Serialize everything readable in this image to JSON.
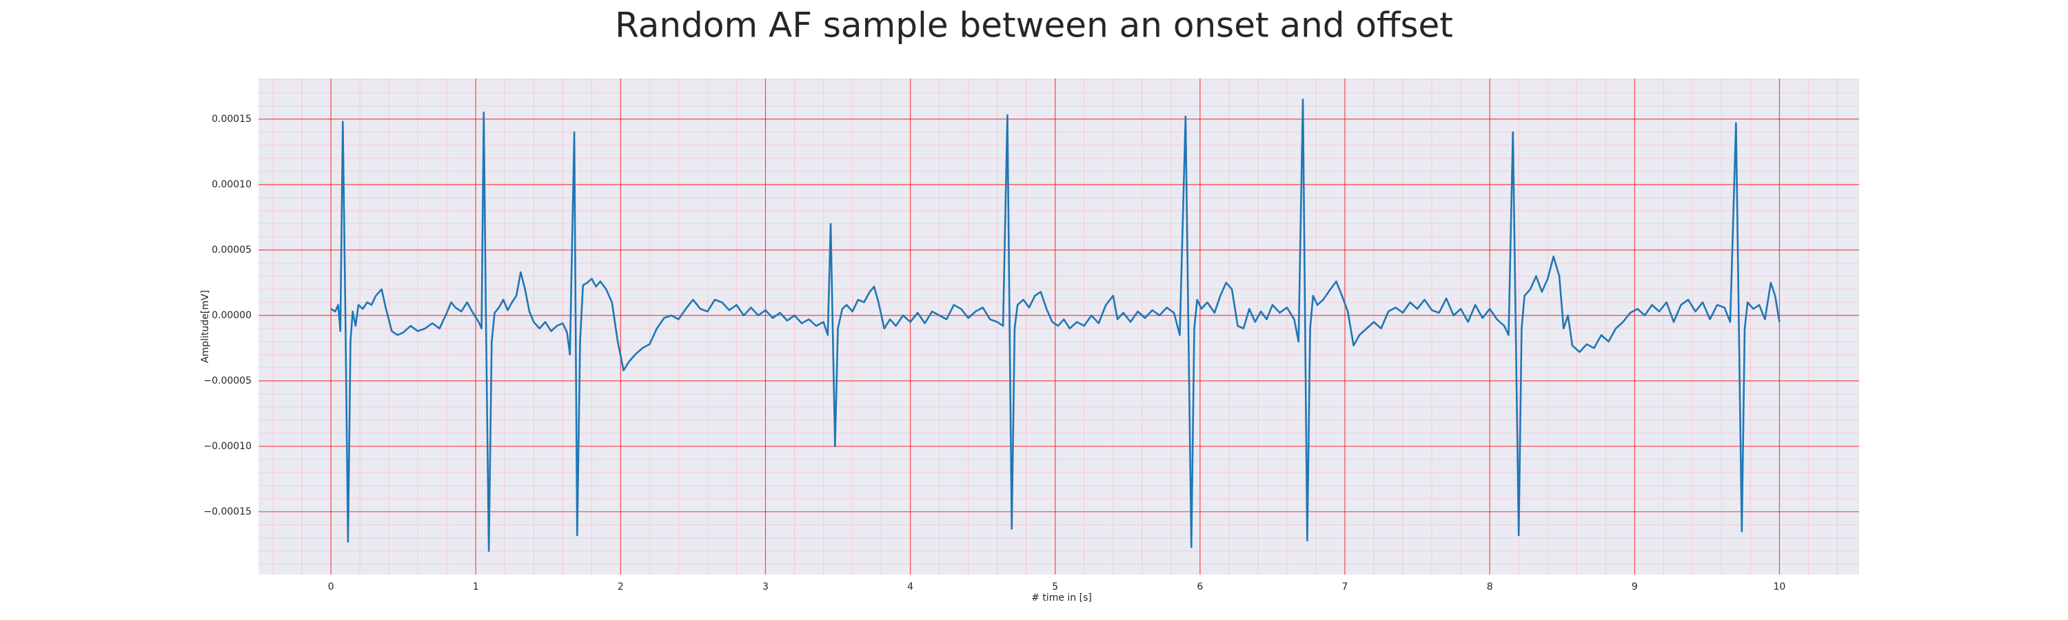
{
  "chart_data": {
    "type": "line",
    "title": "Random AF sample between an onset and offset",
    "xlabel": "# time in [s]",
    "ylabel": "Amplitude[mV]",
    "color": "#1f77b4",
    "background": "#eaeaf2",
    "grid": true,
    "grid_color": "#ff0000",
    "minor_grid": true,
    "minor_grid_color": "#ffb6c1",
    "xlim": [
      -0.5,
      10.55
    ],
    "ylim": [
      -0.000198,
      0.000181
    ],
    "xticks": [
      0,
      1,
      2,
      3,
      4,
      5,
      6,
      7,
      8,
      9,
      10
    ],
    "yticks": [
      {
        "value": -0.00015,
        "label": "−0.00015"
      },
      {
        "value": -0.0001,
        "label": "−0.00010"
      },
      {
        "value": -5e-05,
        "label": "−0.00005"
      },
      {
        "value": 0,
        "label": "0.00000"
      },
      {
        "value": 5e-05,
        "label": "0.00005"
      },
      {
        "value": 0.0001,
        "label": "0.00010"
      },
      {
        "value": 0.00015,
        "label": "0.00015"
      }
    ],
    "x": [
      0,
      0.03,
      0.05,
      0.065,
      0.082,
      0.1,
      0.118,
      0.135,
      0.15,
      0.17,
      0.19,
      0.22,
      0.25,
      0.28,
      0.31,
      0.35,
      0.38,
      0.42,
      0.46,
      0.5,
      0.55,
      0.6,
      0.65,
      0.7,
      0.75,
      0.8,
      0.83,
      0.86,
      0.9,
      0.94,
      0.98,
      1.02,
      1.04,
      1.055,
      1.07,
      1.09,
      1.11,
      1.13,
      1.16,
      1.19,
      1.22,
      1.25,
      1.28,
      1.31,
      1.34,
      1.37,
      1.4,
      1.44,
      1.48,
      1.52,
      1.56,
      1.6,
      1.63,
      1.65,
      1.68,
      1.7,
      1.72,
      1.74,
      1.77,
      1.8,
      1.83,
      1.86,
      1.9,
      1.94,
      1.98,
      2.02,
      2.06,
      2.1,
      2.15,
      2.2,
      2.25,
      2.3,
      2.35,
      2.4,
      2.45,
      2.5,
      2.55,
      2.6,
      2.65,
      2.7,
      2.75,
      2.8,
      2.85,
      2.9,
      2.95,
      3,
      3.05,
      3.1,
      3.15,
      3.2,
      3.25,
      3.3,
      3.35,
      3.4,
      3.43,
      3.45,
      3.48,
      3.5,
      3.53,
      3.56,
      3.6,
      3.64,
      3.68,
      3.72,
      3.75,
      3.78,
      3.82,
      3.86,
      3.9,
      3.95,
      4,
      4.05,
      4.1,
      4.15,
      4.2,
      4.25,
      4.3,
      4.35,
      4.4,
      4.45,
      4.5,
      4.55,
      4.6,
      4.64,
      4.67,
      4.7,
      4.72,
      4.74,
      4.78,
      4.82,
      4.86,
      4.9,
      4.94,
      4.98,
      5.02,
      5.06,
      5.1,
      5.15,
      5.2,
      5.25,
      5.3,
      5.35,
      5.4,
      5.43,
      5.47,
      5.52,
      5.57,
      5.62,
      5.67,
      5.72,
      5.77,
      5.82,
      5.86,
      5.9,
      5.94,
      5.96,
      5.98,
      6.01,
      6.05,
      6.1,
      6.14,
      6.18,
      6.22,
      6.26,
      6.3,
      6.34,
      6.38,
      6.42,
      6.46,
      6.5,
      6.55,
      6.6,
      6.65,
      6.68,
      6.71,
      6.74,
      6.76,
      6.78,
      6.81,
      6.85,
      6.9,
      6.94,
      6.98,
      7.02,
      7.06,
      7.1,
      7.15,
      7.2,
      7.25,
      7.3,
      7.35,
      7.4,
      7.45,
      7.5,
      7.55,
      7.6,
      7.65,
      7.7,
      7.75,
      7.8,
      7.85,
      7.9,
      7.95,
      8,
      8.05,
      8.1,
      8.13,
      8.16,
      8.2,
      8.22,
      8.24,
      8.28,
      8.32,
      8.36,
      8.4,
      8.44,
      8.48,
      8.51,
      8.54,
      8.57,
      8.62,
      8.67,
      8.72,
      8.77,
      8.82,
      8.87,
      8.92,
      8.97,
      9.02,
      9.07,
      9.12,
      9.17,
      9.22,
      9.27,
      9.32,
      9.37,
      9.42,
      9.47,
      9.52,
      9.57,
      9.62,
      9.66,
      9.7,
      9.74,
      9.76,
      9.78,
      9.82,
      9.86,
      9.9,
      9.94,
      9.97,
      10
    ],
    "values": [
      5e-06,
      3e-06,
      8e-06,
      -1.2e-05,
      0.000148,
      0,
      -0.000173,
      -2e-05,
      3e-06,
      -8e-06,
      8e-06,
      5e-06,
      1e-05,
      8e-06,
      1.5e-05,
      2e-05,
      5e-06,
      -1.2e-05,
      -1.5e-05,
      -1.3e-05,
      -8e-06,
      -1.2e-05,
      -1e-05,
      -6e-06,
      -1e-05,
      2e-06,
      1e-05,
      6e-06,
      3e-06,
      1e-05,
      2e-06,
      -5e-06,
      -1e-05,
      0.000155,
      0,
      -0.00018,
      -2e-05,
      2e-06,
      6e-06,
      1.2e-05,
      4e-06,
      1e-05,
      1.5e-05,
      3.3e-05,
      2e-05,
      3e-06,
      -5e-06,
      -1e-05,
      -5e-06,
      -1.2e-05,
      -8e-06,
      -6e-06,
      -1.3e-05,
      -3e-05,
      0.00014,
      -0.000168,
      -2e-05,
      2.3e-05,
      2.5e-05,
      2.8e-05,
      2.2e-05,
      2.6e-05,
      2e-05,
      1e-05,
      -2e-05,
      -4.2e-05,
      -3.5e-05,
      -3e-05,
      -2.5e-05,
      -2.2e-05,
      -1e-05,
      -2e-06,
      0,
      -3e-06,
      5e-06,
      1.2e-05,
      5e-06,
      3e-06,
      1.2e-05,
      1e-05,
      4e-06,
      8e-06,
      0,
      6e-06,
      0,
      4e-06,
      -2e-06,
      2e-06,
      -4e-06,
      0,
      -6e-06,
      -3e-06,
      -8e-06,
      -5e-06,
      -1.5e-05,
      7e-05,
      -0.0001,
      -1e-05,
      5e-06,
      8e-06,
      3e-06,
      1.2e-05,
      1e-05,
      1.8e-05,
      2.2e-05,
      1e-05,
      -1e-05,
      -3e-06,
      -8e-06,
      0,
      -5e-06,
      2e-06,
      -6e-06,
      3e-06,
      0,
      -3e-06,
      8e-06,
      5e-06,
      -2e-06,
      3e-06,
      6e-06,
      -3e-06,
      -5e-06,
      -8e-06,
      0.000153,
      -0.000163,
      -1e-05,
      8e-06,
      1.2e-05,
      6e-06,
      1.5e-05,
      1.8e-05,
      5e-06,
      -5e-06,
      -8e-06,
      -3e-06,
      -1e-05,
      -5e-06,
      -8e-06,
      0,
      -6e-06,
      8e-06,
      1.5e-05,
      -3e-06,
      2e-06,
      -5e-06,
      3e-06,
      -2e-06,
      4e-06,
      0,
      6e-06,
      2e-06,
      -1.5e-05,
      0.000152,
      -0.000177,
      -1e-05,
      1.2e-05,
      5e-06,
      1e-05,
      2e-06,
      1.5e-05,
      2.5e-05,
      2e-05,
      -8e-06,
      -1e-05,
      5e-06,
      -5e-06,
      3e-06,
      -3e-06,
      8e-06,
      2e-06,
      6e-06,
      -3e-06,
      -2e-05,
      0.000165,
      -0.000172,
      -1e-05,
      1.5e-05,
      8e-06,
      1.2e-05,
      2e-05,
      2.6e-05,
      1.5e-05,
      3e-06,
      -2.3e-05,
      -1.5e-05,
      -1e-05,
      -5e-06,
      -1e-05,
      3e-06,
      6e-06,
      2e-06,
      1e-05,
      5e-06,
      1.2e-05,
      4e-06,
      2e-06,
      1.3e-05,
      0,
      5e-06,
      -5e-06,
      8e-06,
      -2e-06,
      5e-06,
      -3e-06,
      -8e-06,
      -1.5e-05,
      0.00014,
      -0.000168,
      -1e-05,
      1.5e-05,
      2e-05,
      3e-05,
      1.8e-05,
      2.8e-05,
      4.5e-05,
      3e-05,
      -1e-05,
      0,
      -2.3e-05,
      -2.8e-05,
      -2.2e-05,
      -2.5e-05,
      -1.5e-05,
      -2e-05,
      -1e-05,
      -5e-06,
      2e-06,
      5e-06,
      0,
      8e-06,
      3e-06,
      1e-05,
      -5e-06,
      8e-06,
      1.2e-05,
      3e-06,
      1e-05,
      -3e-06,
      8e-06,
      6e-06,
      -5e-06,
      0.000147,
      -0.000165,
      -1e-05,
      1e-05,
      5e-06,
      8e-06,
      -3e-06,
      2.5e-05,
      1.5e-05,
      -5e-06
    ]
  }
}
